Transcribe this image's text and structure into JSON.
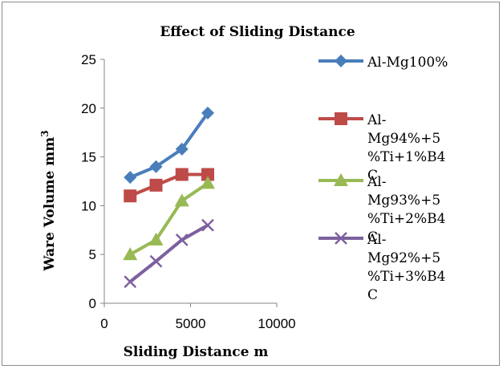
{
  "chart_data": {
    "type": "line",
    "title": "Effect of Sliding  Distance",
    "xlabel": "Sliding  Distance m",
    "ylabel": "Ware Volume mm",
    "ylabel_superscript": "3",
    "xlim": [
      0,
      10000
    ],
    "ylim": [
      0,
      25
    ],
    "x_ticks": [
      "0",
      "5000",
      "10000"
    ],
    "y_ticks": [
      "0",
      "5",
      "10",
      "15",
      "20",
      "25"
    ],
    "grid": false,
    "legend_position": "right",
    "series": [
      {
        "name": "Al-Mg100%",
        "legend_lines": [
          "Al-Mg100%"
        ],
        "color": "#4a7ebb",
        "marker": "diamond",
        "x": [
          1500,
          3000,
          4500,
          6000
        ],
        "y": [
          12.9,
          14.0,
          15.8,
          19.5
        ]
      },
      {
        "name": "Al-Mg94%+5%Ti+1%B4C",
        "legend_lines": [
          "Al-",
          "Mg94%+5",
          "%Ti+1%B4",
          "C"
        ],
        "color": "#be4b48",
        "marker": "square",
        "x": [
          1500,
          3000,
          4500,
          6000
        ],
        "y": [
          11.0,
          12.1,
          13.2,
          13.2
        ]
      },
      {
        "name": "Al-Mg93%+5%Ti+2%B4C",
        "legend_lines": [
          "Al-",
          "Mg93%+5",
          "%Ti+2%B4",
          "C"
        ],
        "color": "#98b954",
        "marker": "triangle",
        "x": [
          1500,
          3000,
          4500,
          6000
        ],
        "y": [
          5.0,
          6.5,
          10.5,
          12.3
        ]
      },
      {
        "name": "Al-Mg92%+5%Ti+3%B4C",
        "legend_lines": [
          "Al-",
          "Mg92%+5",
          "%Ti+3%B4",
          "C"
        ],
        "color": "#7d60a0",
        "marker": "x",
        "x": [
          1500,
          3000,
          4500,
          6000
        ],
        "y": [
          2.2,
          4.3,
          6.5,
          8.0
        ]
      }
    ]
  }
}
